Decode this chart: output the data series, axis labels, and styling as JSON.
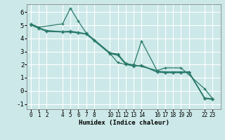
{
  "xlabel": "Humidex (Indice chaleur)",
  "background_color": "#cce8e8",
  "grid_color": "#ffffff",
  "line_color": "#2a7a6a",
  "ylim": [
    -1.4,
    6.6
  ],
  "xlim": [
    -0.5,
    24.0
  ],
  "yticks": [
    -1,
    0,
    1,
    2,
    3,
    4,
    5,
    6
  ],
  "xticks": [
    0,
    1,
    2,
    4,
    5,
    6,
    7,
    8,
    10,
    11,
    12,
    13,
    14,
    16,
    17,
    18,
    19,
    20,
    22,
    23
  ],
  "series": [
    {
      "x": [
        0,
        1,
        4,
        5,
        6,
        7,
        10,
        11,
        12,
        13,
        16,
        17,
        19,
        22,
        23
      ],
      "y": [
        5.1,
        4.85,
        5.1,
        6.3,
        5.3,
        4.4,
        2.85,
        2.15,
        2.0,
        2.0,
        1.55,
        1.75,
        1.75,
        0.15,
        -0.6
      ]
    },
    {
      "x": [
        0,
        1,
        2,
        4,
        5,
        6,
        7,
        8,
        10,
        11,
        12,
        13,
        14,
        16,
        17,
        18,
        19,
        20,
        22,
        23
      ],
      "y": [
        5.05,
        4.8,
        4.6,
        4.5,
        4.55,
        4.45,
        4.35,
        3.9,
        2.9,
        2.8,
        2.1,
        1.95,
        3.8,
        1.5,
        1.45,
        1.45,
        1.45,
        1.45,
        -0.55,
        -0.6
      ]
    },
    {
      "x": [
        0,
        1,
        2,
        4,
        5,
        6,
        7,
        8,
        10,
        11,
        12,
        13,
        14,
        16,
        17,
        18,
        19,
        20,
        22,
        23
      ],
      "y": [
        5.05,
        4.78,
        4.55,
        4.5,
        4.5,
        4.42,
        4.35,
        3.85,
        2.85,
        2.75,
        2.05,
        1.9,
        1.95,
        1.45,
        1.4,
        1.4,
        1.4,
        1.42,
        -0.58,
        -0.63
      ]
    },
    {
      "x": [
        0,
        1,
        2,
        4,
        5,
        6,
        7,
        8,
        10,
        11,
        12,
        13,
        14,
        16,
        17,
        18,
        19,
        20,
        22,
        23
      ],
      "y": [
        5.02,
        4.75,
        4.52,
        4.48,
        4.48,
        4.4,
        4.32,
        3.82,
        2.82,
        2.72,
        2.02,
        1.88,
        1.92,
        1.42,
        1.38,
        1.38,
        1.38,
        1.4,
        -0.6,
        -0.65
      ]
    }
  ]
}
